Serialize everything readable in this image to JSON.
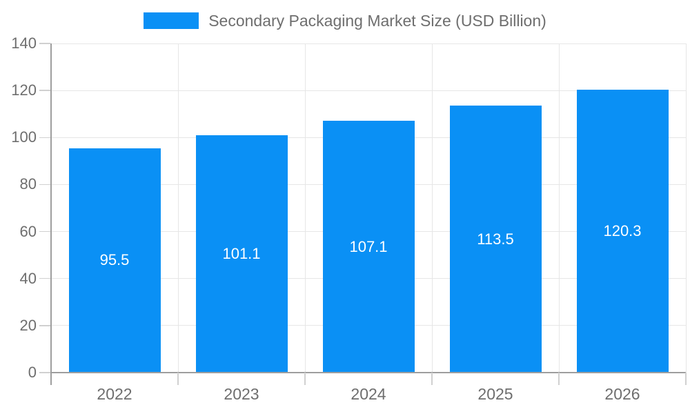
{
  "legend": {
    "label": "Secondary Packaging Market Size (USD Billion)"
  },
  "chart_data": {
    "type": "bar",
    "title": "Secondary Packaging Market Size (USD Billion)",
    "categories": [
      "2022",
      "2023",
      "2024",
      "2025",
      "2026"
    ],
    "series": [
      {
        "name": "Secondary Packaging Market Size (USD Billion)",
        "values": [
          95.5,
          101.1,
          107.1,
          113.5,
          120.3
        ]
      }
    ],
    "value_labels": [
      "95.5",
      "101.1",
      "107.1",
      "113.5",
      "120.3"
    ],
    "xlabel": "",
    "ylabel": "",
    "ylim": [
      0,
      140
    ],
    "ytick_step": 20,
    "yticks": [
      0,
      20,
      40,
      60,
      80,
      100,
      120,
      140
    ],
    "grid": true,
    "legend_position": "top",
    "colors": {
      "bar": "#0a90f5",
      "axis": "#9e9e9e",
      "tick": "#d0d0d0",
      "gridline": "#e6e6e6",
      "axis_label": "#6e6e6e",
      "value_label": "#ffffff",
      "background": "#ffffff"
    }
  }
}
